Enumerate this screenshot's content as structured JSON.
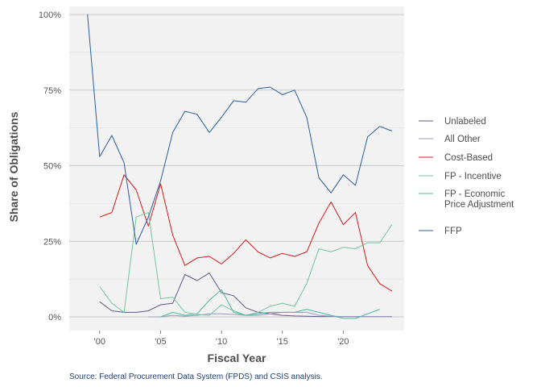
{
  "chart_data": {
    "type": "line",
    "title": "",
    "xlabel": "Fiscal Year",
    "ylabel": "Share of Obligations",
    "source": "Source: Federal Procurement Data System (FPDS) and CSIS analysis.",
    "xlim": [
      1997.5,
      2025
    ],
    "ylim": [
      -0.03,
      1.0
    ],
    "x_ticks": [
      2000,
      2005,
      2010,
      2015,
      2020
    ],
    "x_tick_labels": [
      "'00",
      "'05",
      "'10",
      "'15",
      "'20"
    ],
    "y_ticks": [
      0,
      0.25,
      0.5,
      0.75,
      1.0
    ],
    "y_tick_labels": [
      "0%",
      "25%",
      "50%",
      "75%",
      "100%"
    ],
    "grid": true,
    "legend_position": "right",
    "series": [
      {
        "name": "Unlabeled",
        "color": "#5a5a8a",
        "x": [
          2000,
          2001,
          2002,
          2003,
          2004,
          2005,
          2006,
          2007,
          2008,
          2009,
          2010,
          2011,
          2012,
          2013,
          2014,
          2015,
          2016,
          2017,
          2018,
          2019,
          2020,
          2021,
          2022,
          2023,
          2024
        ],
        "y": [
          0.05,
          0.02,
          0.015,
          0.015,
          0.02,
          0.04,
          0.045,
          0.14,
          0.12,
          0.145,
          0.08,
          0.07,
          0.03,
          0.015,
          0.01,
          0.005,
          0.003,
          0.002,
          0.001,
          0.001,
          0.001,
          0.001,
          0.001,
          0.001,
          0.001
        ]
      },
      {
        "name": "All Other",
        "color": "#9999bb",
        "x": [
          2004,
          2005,
          2006,
          2007,
          2008,
          2009,
          2010,
          2011,
          2012,
          2013,
          2014,
          2015,
          2016,
          2017,
          2018,
          2019,
          2020,
          2021,
          2022,
          2023,
          2024
        ],
        "y": [
          0.0,
          0.0,
          0.005,
          0.002,
          0.005,
          0.01,
          0.01,
          0.008,
          0.005,
          0.005,
          0.01,
          0.015,
          0.015,
          0.015,
          0.005,
          0.002,
          0.001,
          0.001,
          0.001,
          0.001,
          0.001
        ]
      },
      {
        "name": "Cost-Based",
        "color": "#d7191c",
        "x": [
          2000,
          2001,
          2002,
          2003,
          2004,
          2005,
          2006,
          2007,
          2008,
          2009,
          2010,
          2011,
          2012,
          2013,
          2014,
          2015,
          2016,
          2017,
          2018,
          2019,
          2020,
          2021,
          2022,
          2023,
          2024
        ],
        "y": [
          0.33,
          0.345,
          0.47,
          0.42,
          0.3,
          0.44,
          0.27,
          0.17,
          0.195,
          0.2,
          0.175,
          0.21,
          0.255,
          0.215,
          0.195,
          0.21,
          0.2,
          0.215,
          0.31,
          0.38,
          0.305,
          0.345,
          0.17,
          0.11,
          0.085
        ]
      },
      {
        "name": "FP - Incentive",
        "color": "#74c69d",
        "x": [
          2000,
          2001,
          2002,
          2003,
          2004,
          2005,
          2006,
          2007,
          2008,
          2009,
          2010,
          2011,
          2012,
          2013,
          2014,
          2015,
          2016,
          2017,
          2018,
          2019,
          2020,
          2021,
          2022,
          2023,
          2024
        ],
        "y": [
          0.1,
          0.045,
          0.015,
          0.33,
          0.345,
          0.06,
          0.065,
          0.015,
          0.008,
          0.005,
          0.04,
          0.02,
          0.005,
          0.015,
          0.035,
          0.045,
          0.035,
          0.11,
          0.225,
          0.215,
          0.23,
          0.225,
          0.245,
          0.245,
          0.305
        ]
      },
      {
        "name": "FP - Economic Price Adjustment",
        "color": "#4bb8a0",
        "x": [
          2005,
          2006,
          2007,
          2008,
          2009,
          2010,
          2011,
          2012,
          2013,
          2014,
          2015,
          2016,
          2017,
          2018,
          2019,
          2020,
          2021,
          2022,
          2023
        ],
        "y": [
          0.0,
          0.015,
          0.005,
          0.01,
          0.055,
          0.09,
          0.015,
          0.005,
          0.01,
          0.015,
          0.015,
          0.015,
          0.025,
          0.015,
          0.005,
          -0.005,
          -0.005,
          0.01,
          0.025
        ]
      },
      {
        "name": "FFP",
        "color": "#2b5c9e",
        "x": [
          1999,
          2000,
          2001,
          2002,
          2003,
          2004,
          2005,
          2006,
          2007,
          2008,
          2009,
          2010,
          2011,
          2012,
          2013,
          2014,
          2015,
          2016,
          2017,
          2018,
          2019,
          2020,
          2021,
          2022,
          2023,
          2024
        ],
        "y": [
          1.0,
          0.53,
          0.6,
          0.51,
          0.24,
          0.33,
          0.45,
          0.61,
          0.68,
          0.67,
          0.61,
          0.66,
          0.715,
          0.71,
          0.755,
          0.76,
          0.735,
          0.75,
          0.66,
          0.46,
          0.41,
          0.47,
          0.435,
          0.595,
          0.63,
          0.615
        ]
      }
    ]
  }
}
